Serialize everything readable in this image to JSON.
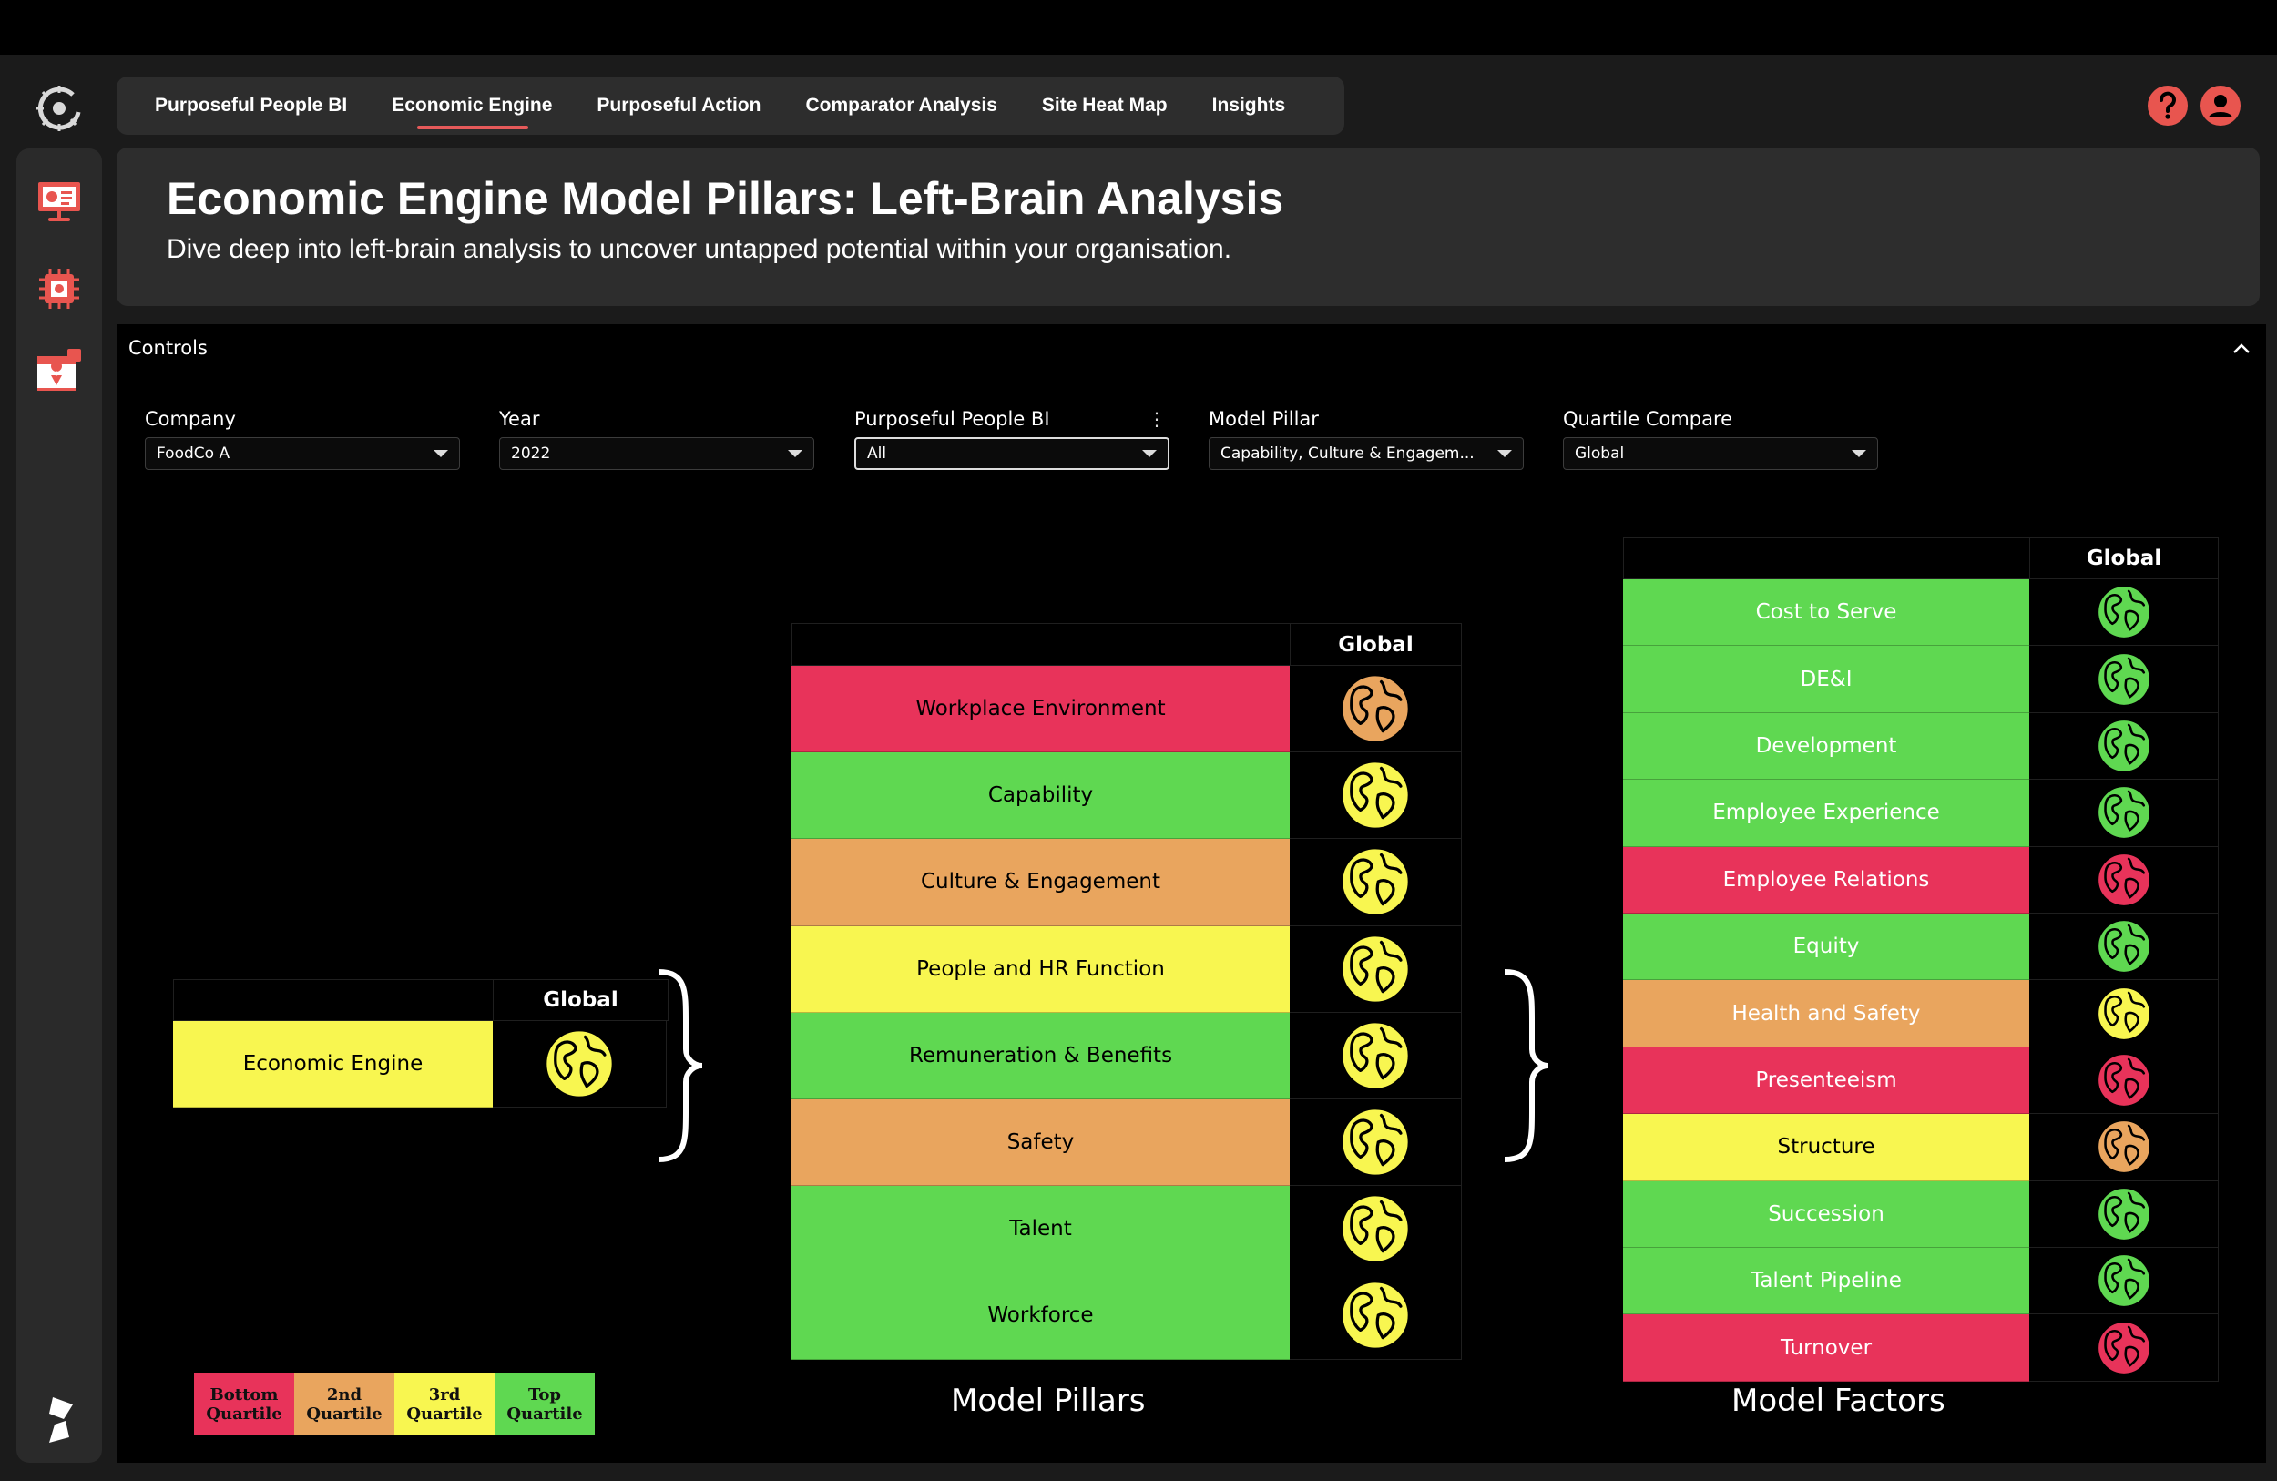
{
  "nav": {
    "tabs": [
      {
        "label": "Purposeful People BI",
        "active": false
      },
      {
        "label": "Economic Engine",
        "active": true
      },
      {
        "label": "Purposeful Action",
        "active": false
      },
      {
        "label": "Comparator Analysis",
        "active": false
      },
      {
        "label": "Site Heat Map",
        "active": false
      },
      {
        "label": "Insights",
        "active": false
      }
    ]
  },
  "header_icons": [
    "help-icon",
    "user-icon"
  ],
  "sidebar": {
    "items": [
      {
        "icon": "presentation-icon"
      },
      {
        "icon": "chip-icon"
      },
      {
        "icon": "calendar-pin-icon"
      }
    ],
    "bottom_icon": "app-logo-icon"
  },
  "page": {
    "title": "Economic Engine Model Pillars: Left-Brain Analysis",
    "subtitle": "Dive deep into left-brain analysis to uncover untapped potential within your organisation."
  },
  "controls": {
    "section_label": "Controls",
    "company": {
      "label": "Company",
      "value": "FoodCo A"
    },
    "year": {
      "label": "Year",
      "value": "2022"
    },
    "ppbi": {
      "label": "Purposeful People BI",
      "value": "All"
    },
    "pillar": {
      "label": "Model Pillar",
      "value": "Capability, Culture & Engagem..."
    },
    "quartile": {
      "label": "Quartile Compare",
      "value": "Global"
    }
  },
  "colors": {
    "bottom": "#e8335a",
    "second": "#e9a55e",
    "third": "#f8f650",
    "top": "#5fd851"
  },
  "engine_table": {
    "column_header": "Global",
    "rows": [
      {
        "name": "Economic Engine",
        "quartile": "third",
        "globe_quartile": "third"
      }
    ]
  },
  "pillars_table": {
    "column_header": "Global",
    "title": "Model Pillars",
    "rows": [
      {
        "name": "Workplace Environment",
        "quartile": "bottom",
        "globe_quartile": "second"
      },
      {
        "name": "Capability",
        "quartile": "top",
        "globe_quartile": "third"
      },
      {
        "name": "Culture & Engagement",
        "quartile": "second",
        "globe_quartile": "third"
      },
      {
        "name": "People and HR Function",
        "quartile": "third",
        "globe_quartile": "third"
      },
      {
        "name": "Remuneration & Benefits",
        "quartile": "top",
        "globe_quartile": "third"
      },
      {
        "name": "Safety",
        "quartile": "second",
        "globe_quartile": "third"
      },
      {
        "name": "Talent",
        "quartile": "top",
        "globe_quartile": "third"
      },
      {
        "name": "Workforce",
        "quartile": "top",
        "globe_quartile": "third"
      }
    ]
  },
  "factors_table": {
    "column_header": "Global",
    "title": "Model Factors",
    "rows": [
      {
        "name": "Cost to Serve",
        "quartile": "top",
        "globe_quartile": "top"
      },
      {
        "name": "DE&I",
        "quartile": "top",
        "globe_quartile": "top"
      },
      {
        "name": "Development",
        "quartile": "top",
        "globe_quartile": "top"
      },
      {
        "name": "Employee Experience",
        "quartile": "top",
        "globe_quartile": "top"
      },
      {
        "name": "Employee Relations",
        "quartile": "bottom",
        "globe_quartile": "bottom"
      },
      {
        "name": "Equity",
        "quartile": "top",
        "globe_quartile": "top"
      },
      {
        "name": "Health and Safety",
        "quartile": "second",
        "globe_quartile": "third"
      },
      {
        "name": "Presenteeism",
        "quartile": "bottom",
        "globe_quartile": "bottom"
      },
      {
        "name": "Structure",
        "quartile": "third",
        "globe_quartile": "second"
      },
      {
        "name": "Succession",
        "quartile": "top",
        "globe_quartile": "top"
      },
      {
        "name": "Talent Pipeline",
        "quartile": "top",
        "globe_quartile": "top"
      },
      {
        "name": "Turnover",
        "quartile": "bottom",
        "globe_quartile": "bottom"
      }
    ]
  },
  "legend": [
    {
      "label": "Bottom Quartile",
      "quartile": "bottom"
    },
    {
      "label": "2nd Quartile",
      "quartile": "second"
    },
    {
      "label": "3rd Quartile",
      "quartile": "third"
    },
    {
      "label": "Top Quartile",
      "quartile": "top"
    }
  ]
}
